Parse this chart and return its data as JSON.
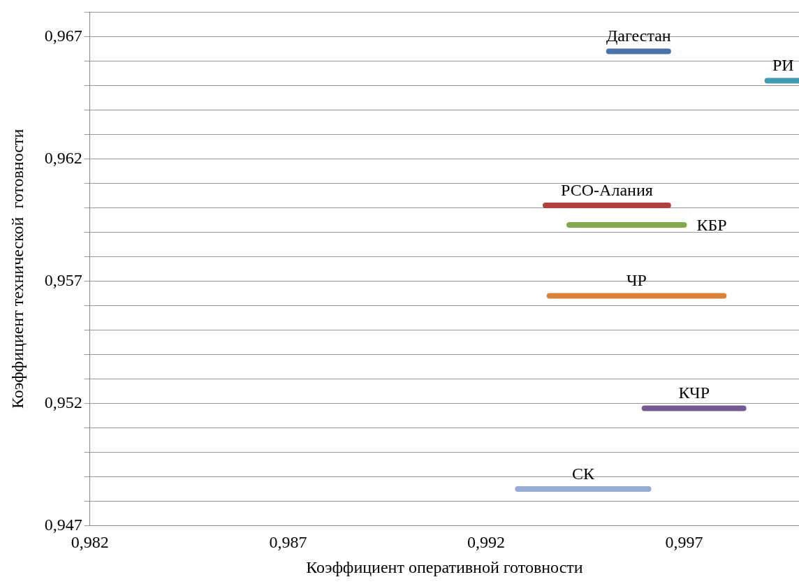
{
  "chart_data": {
    "type": "line",
    "xlabel": "Коэффициент оперативной готовности",
    "ylabel": "Коэффициент технической  готовности",
    "xlim": [
      0.982,
      0.9999
    ],
    "ylim": [
      0.947,
      0.968
    ],
    "xticks": [
      {
        "value": 0.982,
        "label": "0,982"
      },
      {
        "value": 0.987,
        "label": "0,987"
      },
      {
        "value": 0.992,
        "label": "0,992"
      },
      {
        "value": 0.997,
        "label": "0,997"
      }
    ],
    "yticks": [
      {
        "value": 0.947,
        "label": "0,947"
      },
      {
        "value": 0.948,
        "label": null
      },
      {
        "value": 0.949,
        "label": null
      },
      {
        "value": 0.95,
        "label": null
      },
      {
        "value": 0.951,
        "label": null
      },
      {
        "value": 0.952,
        "label": "0,952"
      },
      {
        "value": 0.953,
        "label": null
      },
      {
        "value": 0.954,
        "label": null
      },
      {
        "value": 0.955,
        "label": null
      },
      {
        "value": 0.956,
        "label": null
      },
      {
        "value": 0.957,
        "label": "0,957"
      },
      {
        "value": 0.958,
        "label": null
      },
      {
        "value": 0.959,
        "label": null
      },
      {
        "value": 0.96,
        "label": null
      },
      {
        "value": 0.961,
        "label": null
      },
      {
        "value": 0.962,
        "label": "0,962"
      },
      {
        "value": 0.963,
        "label": null
      },
      {
        "value": 0.964,
        "label": null
      },
      {
        "value": 0.965,
        "label": null
      },
      {
        "value": 0.966,
        "label": null
      },
      {
        "value": 0.967,
        "label": "0,967"
      },
      {
        "value": 0.968,
        "label": null
      }
    ],
    "grid": "y",
    "legend": false,
    "marker": "none",
    "series": [
      {
        "name": "Дагестан",
        "color": "#4a72a8",
        "x": [
          0.9951,
          0.9966
        ],
        "values": [
          0.9664,
          0.9664
        ]
      },
      {
        "name": "РИ",
        "color": "#3e9bb0",
        "x": [
          0.9991,
          0.9999
        ],
        "values": [
          0.9652,
          0.9652
        ]
      },
      {
        "name": "РСО-Алания",
        "color": "#b0413e",
        "x": [
          0.9935,
          0.9966
        ],
        "values": [
          0.9601,
          0.9601
        ]
      },
      {
        "name": "КБР",
        "color": "#84a94b",
        "x": [
          0.9941,
          0.997
        ],
        "values": [
          0.9593,
          0.9593
        ]
      },
      {
        "name": "ЧР",
        "color": "#dc8236",
        "x": [
          0.9936,
          0.998
        ],
        "values": [
          0.9564,
          0.9564
        ]
      },
      {
        "name": "КЧР",
        "color": "#735a95",
        "x": [
          0.996,
          0.9985
        ],
        "values": [
          0.9518,
          0.9518
        ]
      },
      {
        "name": "СК",
        "color": "#94abd4",
        "x": [
          0.9928,
          0.9961
        ],
        "values": [
          0.9485,
          0.9485
        ]
      }
    ]
  }
}
